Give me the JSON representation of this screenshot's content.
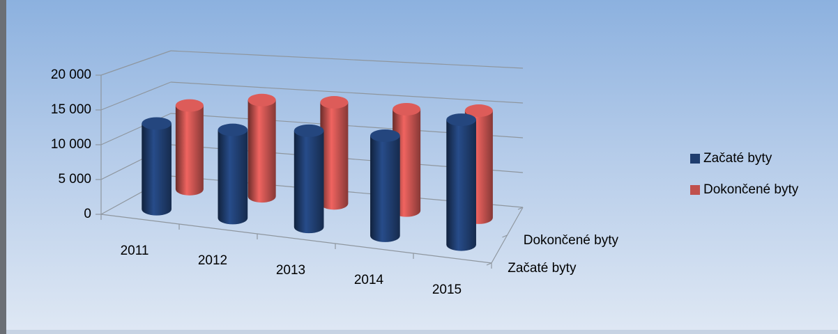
{
  "chart_data": {
    "type": "bar3d",
    "categories": [
      "2011",
      "2012",
      "2013",
      "2014",
      "2015"
    ],
    "series": [
      {
        "name": "Začaté byty",
        "color": "#1f3d6e",
        "values": [
          12600,
          12900,
          14000,
          14500,
          18000
        ]
      },
      {
        "name": "Dokončené byty",
        "color": "#c0504d",
        "values": [
          12900,
          14600,
          15100,
          14900,
          15500
        ]
      }
    ],
    "ylim": [
      0,
      20000
    ],
    "yticks": [
      {
        "value": 0,
        "label": "0"
      },
      {
        "value": 5000,
        "label": "5 000"
      },
      {
        "value": 10000,
        "label": "10 000"
      },
      {
        "value": 15000,
        "label": "15 000"
      },
      {
        "value": 20000,
        "label": "20 000"
      }
    ],
    "grid": true,
    "legend": "right"
  }
}
